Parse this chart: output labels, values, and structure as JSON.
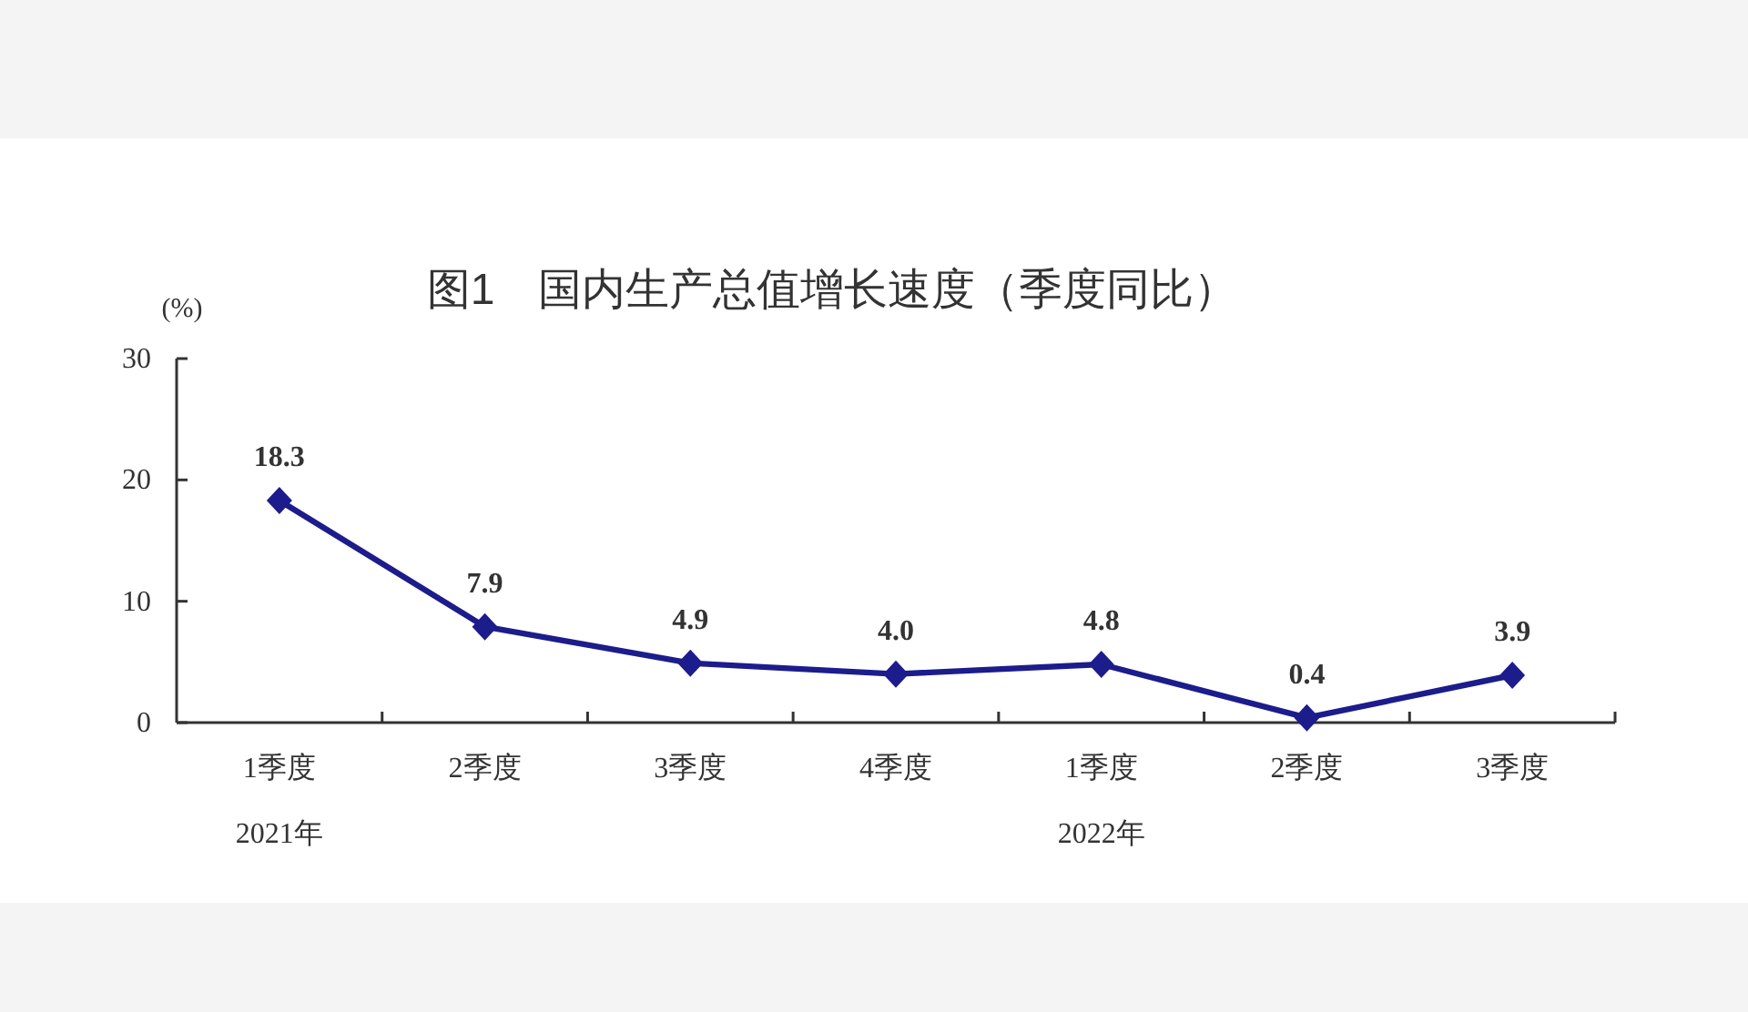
{
  "chart_data": {
    "type": "line",
    "title": "图1　国内生产总值增长速度（季度同比）",
    "ylabel": "(%)",
    "categories": [
      "1季度\n2021年",
      "2季度",
      "3季度",
      "4季度",
      "1季度\n2022年",
      "2季度",
      "3季度"
    ],
    "series": [
      {
        "color": "#1c1c8c",
        "values": [
          18.3,
          7.9,
          4.9,
          4.0,
          4.8,
          0.4,
          3.9
        ],
        "value_labels": [
          "18.3",
          "7.9",
          "4.9",
          "4.0",
          "4.8",
          "0.4",
          "3.9"
        ]
      }
    ],
    "ylim": [
      0,
      30
    ],
    "yticks": [
      0,
      10,
      20,
      30
    ],
    "marker": "diamond",
    "line_style": "solid"
  }
}
